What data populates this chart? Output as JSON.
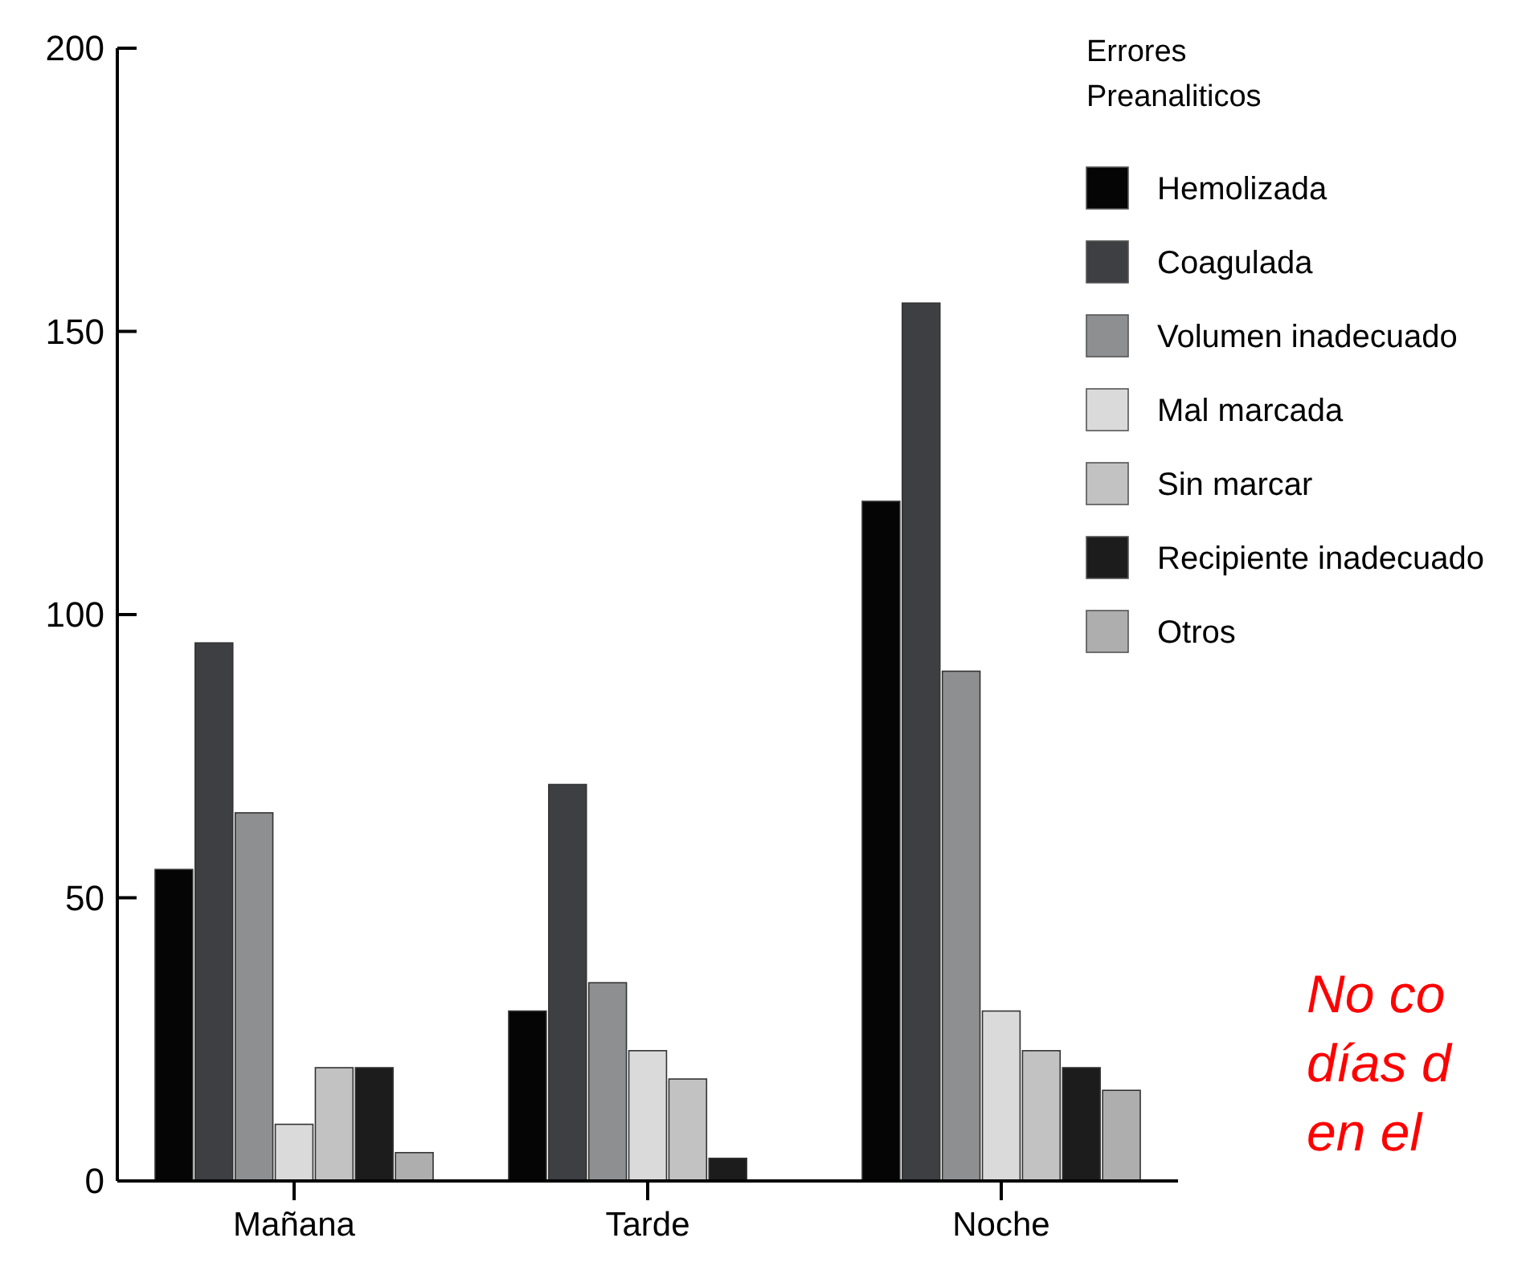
{
  "chart_data": {
    "type": "bar",
    "categories": [
      "Mañana",
      "Tarde",
      "Noche"
    ],
    "legend_title": "Errores Preanaliticos",
    "legend": "top right",
    "ylim": [
      0,
      200
    ],
    "yticks": [
      0,
      50,
      100,
      150,
      200
    ],
    "grid": false,
    "series": [
      {
        "name": "Hemolizada",
        "color": "#050505",
        "values": [
          55,
          30,
          120
        ]
      },
      {
        "name": "Coagulada",
        "color": "#3d3f42",
        "values": [
          95,
          70,
          155
        ]
      },
      {
        "name": "Volumen inadecuado",
        "color": "#8e8f91",
        "values": [
          65,
          35,
          90
        ]
      },
      {
        "name": "Mal marcada",
        "color": "#dadada",
        "values": [
          10,
          23,
          30
        ]
      },
      {
        "name": "Sin marcar",
        "color": "#c2c2c2",
        "values": [
          20,
          18,
          23
        ]
      },
      {
        "name": "Recipiente inadecuado",
        "color": "#1c1c1c",
        "values": [
          20,
          4,
          20
        ]
      },
      {
        "name": "Otros",
        "color": "#aeaeae",
        "values": [
          5,
          0,
          16
        ]
      }
    ],
    "annotations": [
      "No co",
      "días d",
      "en el"
    ]
  }
}
